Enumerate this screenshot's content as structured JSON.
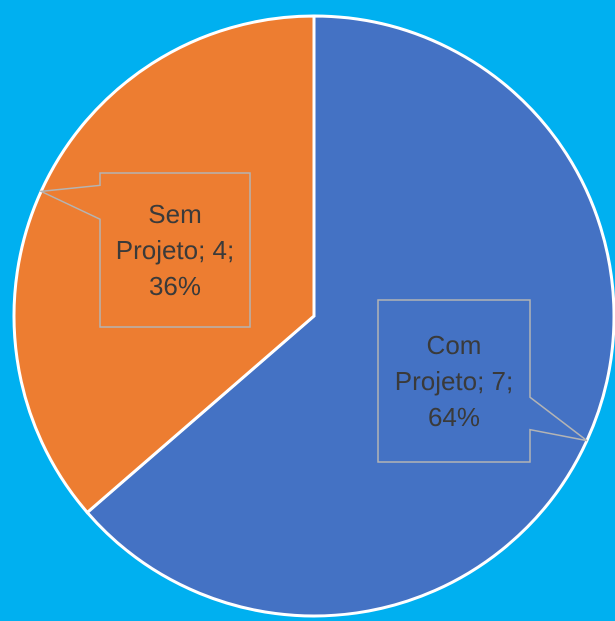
{
  "chart_data": {
    "type": "pie",
    "values": [
      7,
      4
    ],
    "value_labels": [
      "Com Projeto; 7; 64%",
      "Sem Projeto; 4; 36%"
    ],
    "colors": [
      "#4472c4",
      "#ed7d31"
    ],
    "background": "#00b0f0"
  }
}
